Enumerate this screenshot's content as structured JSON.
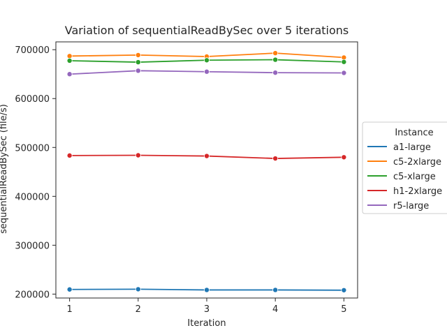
{
  "chart_data": {
    "type": "line",
    "title": "Variation of sequentialReadBySec over 5 iterations",
    "xlabel": "Iteration",
    "ylabel": "sequentialReadBySec (file/s)",
    "x": [
      1,
      2,
      3,
      4,
      5
    ],
    "xticks": [
      "1",
      "2",
      "3",
      "4",
      "5"
    ],
    "yticks": [
      "200000",
      "300000",
      "400000",
      "500000",
      "600000",
      "700000"
    ],
    "ylim": [
      192000,
      716000
    ],
    "xlim": [
      0.8,
      5.2
    ],
    "grid": false,
    "legend": {
      "title": "Instance",
      "placement": "right-outside"
    },
    "series": [
      {
        "name": "a1-large",
        "color": "#1f77b4",
        "values": [
          209500,
          210000,
          208500,
          208500,
          208000
        ]
      },
      {
        "name": "c5-2xlarge",
        "color": "#ff7f0e",
        "values": [
          687000,
          689000,
          686000,
          693000,
          684000
        ]
      },
      {
        "name": "c5-xlarge",
        "color": "#2ca02c",
        "values": [
          677500,
          674500,
          678500,
          679500,
          675000
        ]
      },
      {
        "name": "h1-2xlarge",
        "color": "#d62728",
        "values": [
          483500,
          484000,
          482500,
          477500,
          480000
        ]
      },
      {
        "name": "r5-large",
        "color": "#9467bd",
        "values": [
          650000,
          657000,
          655000,
          653000,
          652500
        ]
      }
    ]
  }
}
